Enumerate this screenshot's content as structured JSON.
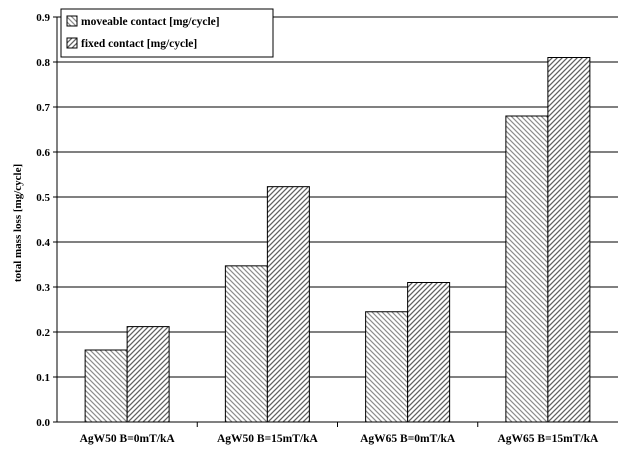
{
  "chart_data": {
    "type": "bar",
    "categories": [
      "AgW50 B=0mT/kA",
      "AgW50 B=15mT/kA",
      "AgW65 B=0mT/kA",
      "AgW65 B=15mT/kA"
    ],
    "series": [
      {
        "name": "moveable contact [mg/cycle]",
        "values": [
          0.16,
          0.347,
          0.245,
          0.68
        ],
        "pattern": "diag-back"
      },
      {
        "name": "fixed contact [mg/cycle]",
        "values": [
          0.212,
          0.523,
          0.31,
          0.81
        ],
        "pattern": "diag-forward"
      }
    ],
    "title": "",
    "xlabel": "",
    "ylabel": "total mass loss [mg/cycle]",
    "ylim": [
      0,
      0.9
    ],
    "yticks": [
      "0.0",
      "0.1",
      "0.2",
      "0.3",
      "0.4",
      "0.5",
      "0.6",
      "0.7",
      "0.8",
      "0.9"
    ],
    "grid": true,
    "legend_position": "top-left"
  }
}
